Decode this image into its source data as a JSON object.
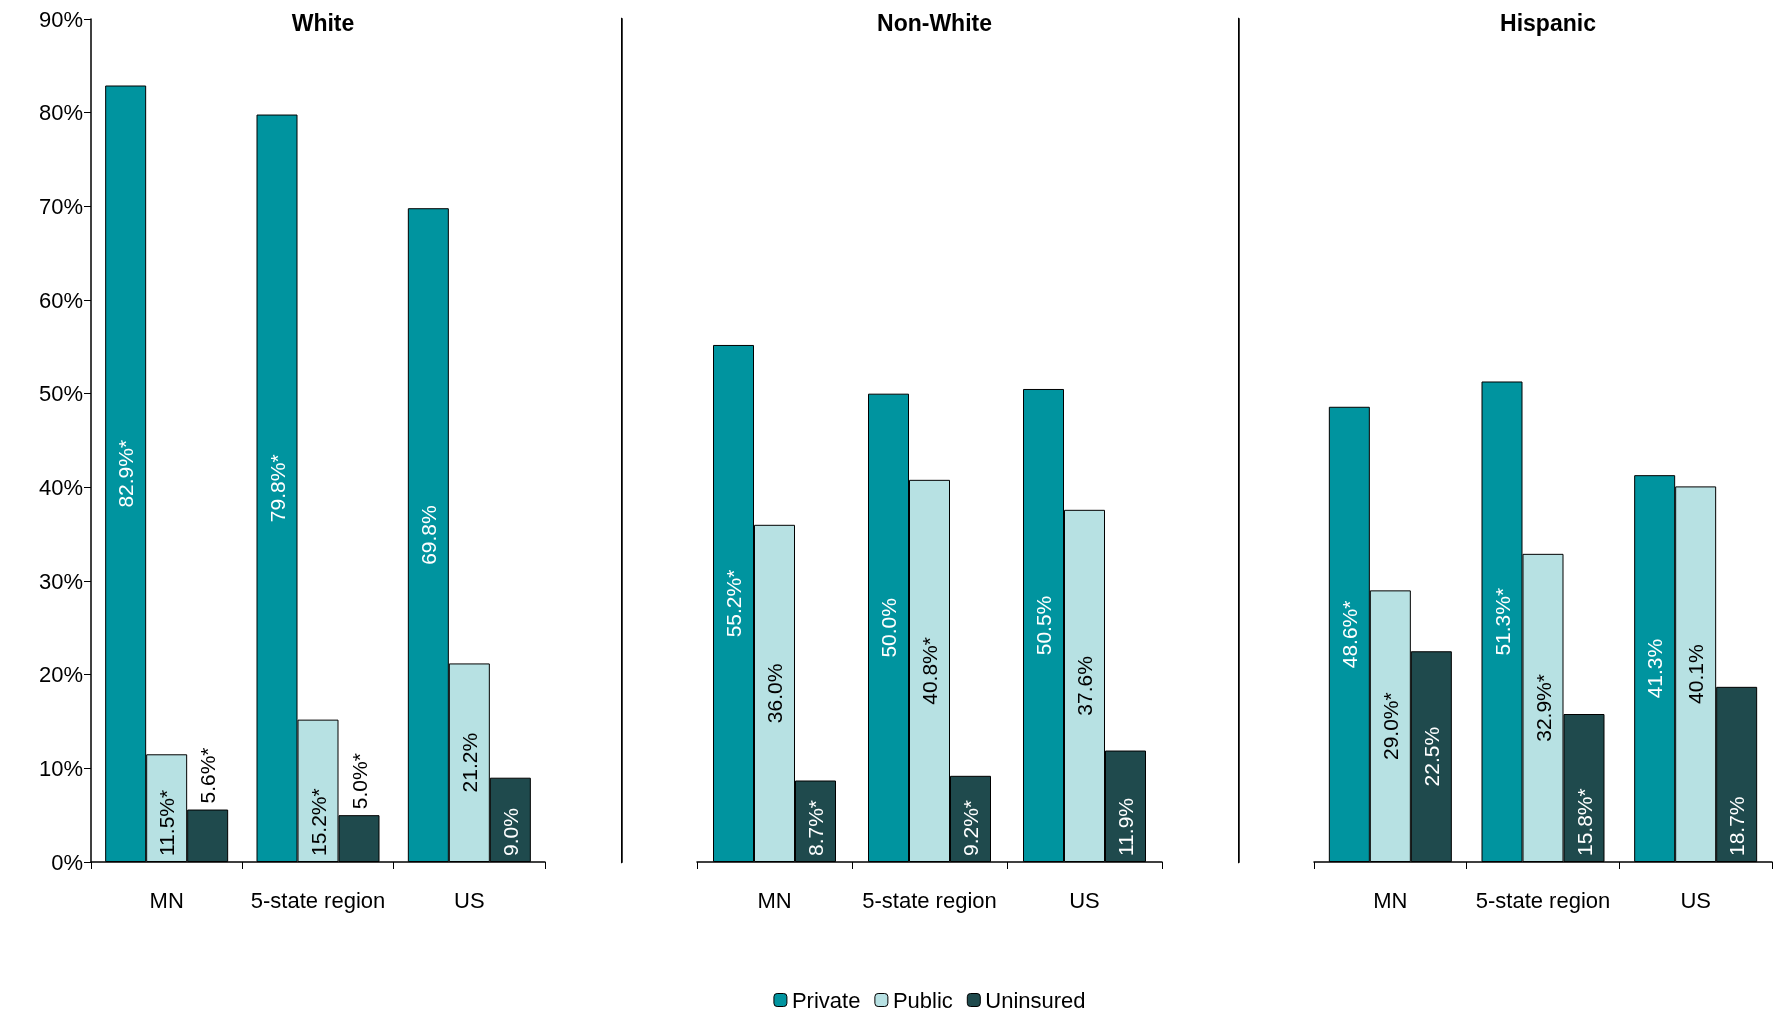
{
  "chart_data": [
    {
      "type": "bar",
      "title": "White",
      "categories": [
        "MN",
        "5-state region",
        "US"
      ],
      "ylim": [
        0,
        90
      ],
      "yticks": [
        {
          "value": 0,
          "label": "0%"
        },
        {
          "value": 10,
          "label": "10%"
        },
        {
          "value": 20,
          "label": "20%"
        },
        {
          "value": 30,
          "label": "30%"
        },
        {
          "value": 40,
          "label": "40%"
        },
        {
          "value": 50,
          "label": "50%"
        },
        {
          "value": 60,
          "label": "60%"
        },
        {
          "value": 70,
          "label": "70%"
        },
        {
          "value": 80,
          "label": "80%"
        },
        {
          "value": 90,
          "label": "90%"
        }
      ],
      "legend": false,
      "grid": false,
      "series": [
        {
          "color": "#00949f",
          "values": [
            82.9,
            79.8,
            69.8
          ],
          "value_labels": [
            "82.9%*",
            "79.8%*",
            "69.8%"
          ]
        },
        {
          "color": "#b7e1e3",
          "values": [
            11.5,
            15.2,
            21.2
          ],
          "value_labels": [
            "11.5%*",
            "15.2%*",
            "21.2%"
          ]
        },
        {
          "color": "#1f4a4d",
          "values": [
            5.6,
            5.0,
            9.0
          ],
          "value_labels": [
            "5.6%*",
            "5.0%*",
            "9.0%"
          ]
        }
      ]
    },
    {
      "type": "bar",
      "title": "Non-White",
      "categories": [
        "MN",
        "5-state region",
        "US"
      ],
      "ylim": [
        0,
        90
      ],
      "tick_labels": "x",
      "legend": "bottom",
      "grid": false,
      "series": [
        {
          "name": "Private",
          "color": "#00949f",
          "values": [
            55.2,
            50.0,
            50.5
          ],
          "value_labels": [
            "55.2%*",
            "50.0%",
            "50.5%"
          ]
        },
        {
          "name": "Public",
          "color": "#b7e1e3",
          "values": [
            36.0,
            40.8,
            37.6
          ],
          "value_labels": [
            "36.0%",
            "40.8%*",
            "37.6%"
          ]
        },
        {
          "name": "Uninsured",
          "color": "#1f4a4d",
          "values": [
            8.7,
            9.2,
            11.9
          ],
          "value_labels": [
            "8.7%*",
            "9.2%*",
            "11.9%"
          ]
        }
      ]
    },
    {
      "type": "bar",
      "title": "Hispanic",
      "categories": [
        "MN",
        "5-state region",
        "US"
      ],
      "ylim": [
        0,
        90
      ],
      "tick_labels": "x",
      "legend": false,
      "grid": false,
      "series": [
        {
          "color": "#00949f",
          "values": [
            48.6,
            51.3,
            41.3
          ],
          "value_labels": [
            "48.6%*",
            "51.3%*",
            "41.3%"
          ]
        },
        {
          "color": "#b7e1e3",
          "values": [
            29.0,
            32.9,
            40.1
          ],
          "value_labels": [
            "29.0%*",
            "32.9%*",
            "40.1%"
          ]
        },
        {
          "color": "#1f4a4d",
          "values": [
            22.5,
            15.8,
            18.7
          ],
          "value_labels": [
            "22.5%",
            "15.8%*",
            "18.7%"
          ]
        }
      ]
    }
  ]
}
